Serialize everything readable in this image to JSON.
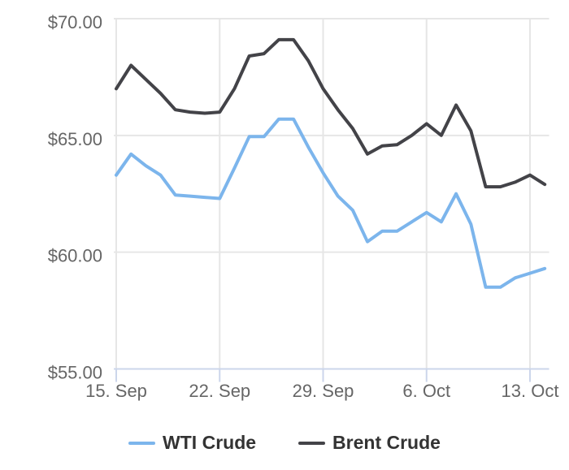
{
  "chart_data": {
    "type": "line",
    "x": [
      "15. Sep",
      "16. Sep",
      "17. Sep",
      "18. Sep",
      "19. Sep",
      "20. Sep",
      "21. Sep",
      "22. Sep",
      "23. Sep",
      "24. Sep",
      "25. Sep",
      "26. Sep",
      "27. Sep",
      "28. Sep",
      "29. Sep",
      "30. Sep",
      "1. Oct",
      "2. Oct",
      "3. Oct",
      "4. Oct",
      "5. Oct",
      "6. Oct",
      "7. Oct",
      "8. Oct",
      "9. Oct",
      "10. Oct",
      "11. Oct",
      "12. Oct",
      "13. Oct",
      "14. Oct"
    ],
    "series": [
      {
        "name": "WTI Crude",
        "color": "#7cb5ec",
        "values": [
          63.3,
          64.2,
          63.7,
          63.3,
          62.45,
          62.4,
          62.35,
          62.3,
          63.6,
          64.95,
          64.95,
          65.7,
          65.7,
          64.5,
          63.4,
          62.4,
          61.8,
          60.45,
          60.9,
          60.9,
          61.3,
          61.7,
          61.3,
          62.5,
          61.2,
          58.5,
          58.5,
          58.9,
          59.1,
          59.3
        ]
      },
      {
        "name": "Brent Crude",
        "color": "#434348",
        "values": [
          67.0,
          68.0,
          67.4,
          66.8,
          66.1,
          66.0,
          65.95,
          66.0,
          67.0,
          68.4,
          68.5,
          69.1,
          69.1,
          68.2,
          67.0,
          66.1,
          65.3,
          64.2,
          64.55,
          64.6,
          65.0,
          65.5,
          65.0,
          66.3,
          65.2,
          62.8,
          62.8,
          63.0,
          63.3,
          62.9
        ]
      }
    ],
    "xticks": [
      {
        "label": "15. Sep",
        "index": 0
      },
      {
        "label": "22. Sep",
        "index": 7
      },
      {
        "label": "29. Sep",
        "index": 14
      },
      {
        "label": "6. Oct",
        "index": 21
      },
      {
        "label": "13. Oct",
        "index": 28
      }
    ],
    "yticks": [
      {
        "label": "$55.00",
        "value": 55
      },
      {
        "label": "$60.00",
        "value": 60
      },
      {
        "label": "$65.00",
        "value": 65
      },
      {
        "label": "$70.00",
        "value": 70
      }
    ],
    "ylim": [
      55,
      70
    ],
    "grid": true,
    "legend_position": "bottom",
    "colors": {
      "background": "#ffffff",
      "grid": "#e6e6e6",
      "axis_line": "#ccd6eb",
      "tick_mark": "#ccd6eb",
      "tick_label": "#666666",
      "legend_text": "#333333"
    }
  }
}
